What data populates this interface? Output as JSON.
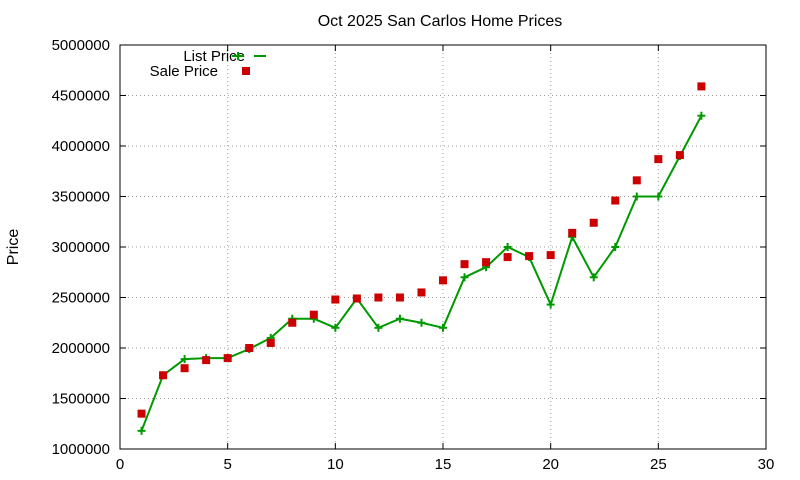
{
  "chart_data": {
    "type": "line",
    "title": "Oct 2025 San Carlos Home Prices",
    "xlabel": "",
    "ylabel": "Price",
    "xlim": [
      0,
      30
    ],
    "ylim": [
      1000000,
      5000000
    ],
    "xticks": [
      0,
      5,
      10,
      15,
      20,
      25,
      30
    ],
    "yticks": [
      1000000,
      1500000,
      2000000,
      2500000,
      3000000,
      3500000,
      4000000,
      4500000,
      5000000
    ],
    "grid": true,
    "legend_position": "top-left",
    "series": [
      {
        "name": "List Price",
        "style": "line-points",
        "marker": "plus",
        "color": "#009900",
        "x": [
          1,
          2,
          3,
          4,
          5,
          6,
          7,
          8,
          9,
          10,
          11,
          12,
          13,
          14,
          15,
          16,
          17,
          18,
          19,
          20,
          21,
          22,
          23,
          24,
          25,
          26,
          27
        ],
        "y": [
          1180000,
          1730000,
          1890000,
          1900000,
          1900000,
          1990000,
          2100000,
          2290000,
          2290000,
          2200000,
          2490000,
          2200000,
          2290000,
          2250000,
          2200000,
          2700000,
          2800000,
          3000000,
          2900000,
          2430000,
          3100000,
          2700000,
          3000000,
          3500000,
          3500000,
          3900000,
          4300000
        ]
      },
      {
        "name": "Sale Price",
        "style": "points",
        "marker": "square",
        "color": "#cc0000",
        "x": [
          1,
          2,
          3,
          4,
          5,
          6,
          7,
          8,
          9,
          10,
          11,
          12,
          13,
          14,
          15,
          16,
          17,
          18,
          19,
          20,
          21,
          22,
          23,
          24,
          25,
          26,
          27
        ],
        "y": [
          1350000,
          1730000,
          1800000,
          1880000,
          1900000,
          2000000,
          2050000,
          2250000,
          2330000,
          2480000,
          2490000,
          2500000,
          2500000,
          2550000,
          2670000,
          2830000,
          2850000,
          2900000,
          2910000,
          2920000,
          3140000,
          3240000,
          3460000,
          3660000,
          3870000,
          3910000,
          4590000
        ]
      }
    ]
  }
}
